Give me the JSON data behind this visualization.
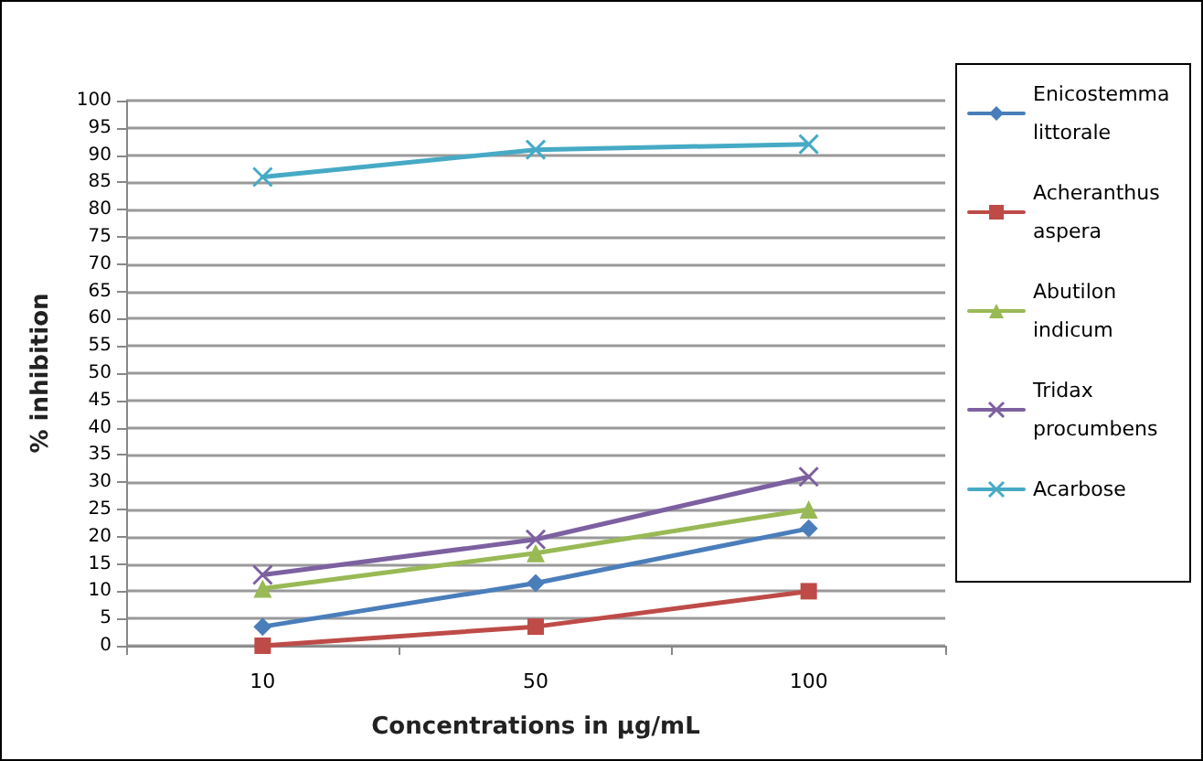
{
  "chart_data": {
    "type": "line",
    "xlabel": "Concentrations in µg/mL",
    "ylabel": "% inhibition",
    "categories": [
      "10",
      "50",
      "100"
    ],
    "ylim": [
      0,
      100
    ],
    "yticks": [
      0,
      5,
      10,
      15,
      20,
      25,
      30,
      35,
      40,
      45,
      50,
      55,
      60,
      65,
      70,
      75,
      80,
      85,
      90,
      95,
      100
    ],
    "grid": "y",
    "legend": "right",
    "series": [
      {
        "name": "Enicostemma littorale",
        "color": "#4a7ebb",
        "marker": "diamond",
        "values": [
          3.5,
          11.5,
          21.5
        ]
      },
      {
        "name": "Acheranthus aspera",
        "color": "#be4b48",
        "marker": "square",
        "values": [
          0,
          3.5,
          10
        ]
      },
      {
        "name": "Abutilon indicum",
        "color": "#98b954",
        "marker": "triangle",
        "values": [
          10.5,
          17,
          25
        ]
      },
      {
        "name": "Tridax procumbens",
        "color": "#7d60a0",
        "marker": "cross",
        "values": [
          13,
          19.5,
          31
        ]
      },
      {
        "name": "Acarbose",
        "color": "#46aac5",
        "marker": "cross",
        "values": [
          86,
          91,
          92
        ]
      }
    ]
  }
}
